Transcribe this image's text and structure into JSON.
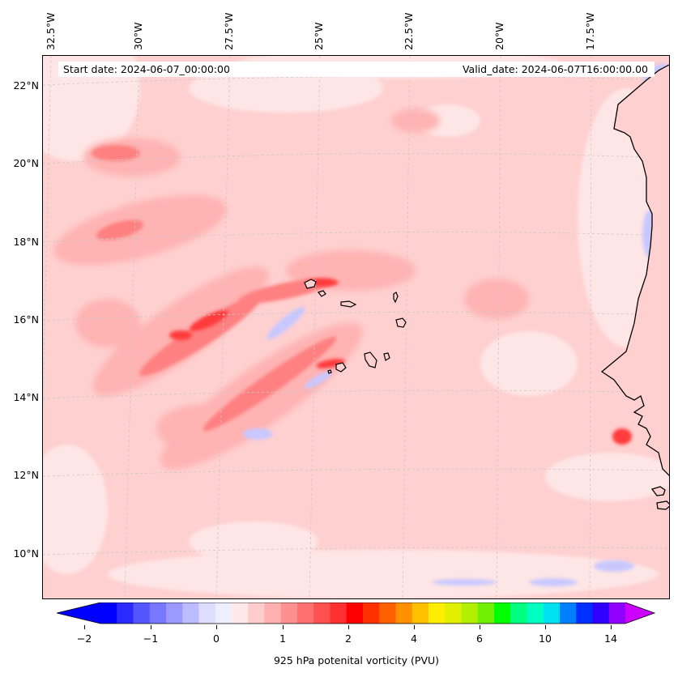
{
  "map": {
    "projection_grid": "lat-lon",
    "coastline_color": "#000000",
    "gridline_style": "dashed light grey"
  },
  "lon_labels": [
    "32.5°W",
    "30°W",
    "27.5°W",
    "25°W",
    "22.5°W",
    "20°W",
    "17.5°W"
  ],
  "lat_labels": [
    "22°N",
    "20°N",
    "18°N",
    "16°N",
    "14°N",
    "12°N",
    "10°N"
  ],
  "banner": {
    "start_date": "Start date: 2024-06-07_00:00:00",
    "valid_date": "Valid_date: 2024-06-07T16:00:00.00"
  },
  "colorbar": {
    "label": "925 hPa potenital vorticity (PVU)",
    "tick_labels": [
      "−2",
      "−1",
      "0",
      "1",
      "2",
      "4",
      "6",
      "10",
      "14"
    ],
    "colors": [
      "#0000ff",
      "#2a2aff",
      "#5555ff",
      "#7777ff",
      "#9999ff",
      "#bbbbff",
      "#ddddff",
      "#eeeeff",
      "#ffe8e8",
      "#ffcccc",
      "#ffb0b0",
      "#ff9090",
      "#ff7070",
      "#ff5050",
      "#ff3030",
      "#ff0000",
      "#ff3000",
      "#ff6000",
      "#ff9000",
      "#ffc000",
      "#ffee00",
      "#e0f000",
      "#b0f000",
      "#70f000",
      "#00ff00",
      "#00ff80",
      "#00ffc0",
      "#00e0f0",
      "#0080ff",
      "#0030ff",
      "#3000ff",
      "#9000ff"
    ],
    "under_color": "#0000ff",
    "over_color": "#cc00ff"
  }
}
